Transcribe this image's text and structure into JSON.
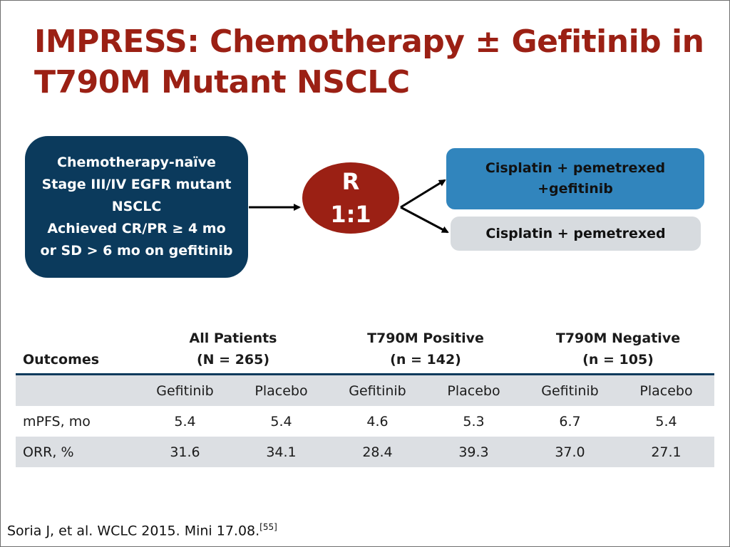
{
  "slide": {
    "title_line1": "IMPRESS: Chemotherapy ± Gefitinib in",
    "title_line2": "T790M Mutant NSCLC"
  },
  "diagram": {
    "eligibility": [
      "Chemotherapy-naïve",
      "Stage III/IV EGFR mutant",
      "NSCLC",
      "Achieved CR/PR ≥ 4 mo",
      "or SD > 6  mo on gefitinib"
    ],
    "randomization": {
      "letter": "R",
      "ratio": "1:1"
    },
    "arm1": [
      "Cisplatin + pemetrexed",
      "+gefitinib"
    ],
    "arm2": "Cisplatin + pemetrexed",
    "colors": {
      "eligibility": "#0b3a5c",
      "randomization": "#9b2014",
      "arm1": "#3185bd",
      "arm2": "#d7dbdf"
    }
  },
  "table": {
    "corner": "Outcomes",
    "groups": [
      {
        "name": "All Patients",
        "n": "(N = 265)"
      },
      {
        "name": "T790M Positive",
        "n": "(n = 142)"
      },
      {
        "name": "T790M Negative",
        "n": "(n = 105)"
      }
    ],
    "subheaders": [
      "Gefitinib",
      "Placebo",
      "Gefitinib",
      "Placebo",
      "Gefitinib",
      "Placebo"
    ],
    "rows": [
      {
        "label": "mPFS, mo",
        "values": [
          "5.4",
          "5.4",
          "4.6",
          "5.3",
          "6.7",
          "5.4"
        ]
      },
      {
        "label": "ORR, %",
        "values": [
          "31.6",
          "34.1",
          "28.4",
          "39.3",
          "37.0",
          "27.1"
        ]
      }
    ]
  },
  "citation": {
    "text": "Soria J, et al. WCLC 2015. Mini 17.08.",
    "ref": "[55]"
  }
}
